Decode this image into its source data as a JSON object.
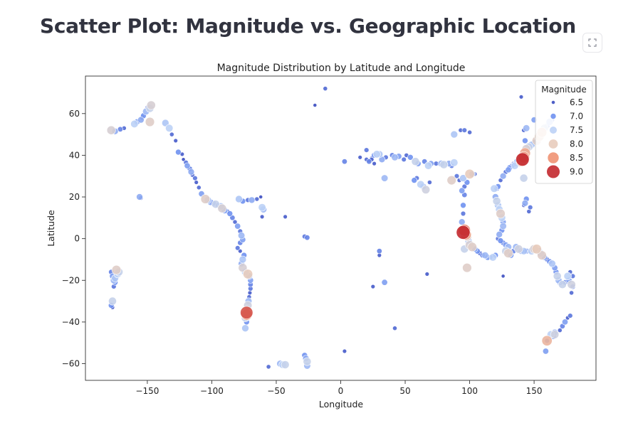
{
  "page": {
    "title": "Scatter Plot: Magnitude vs. Geographic Location"
  },
  "colors": {
    "low": "#3b4cc0",
    "mid": "#dddddd",
    "high": "#b40426"
  },
  "icons": {
    "fullscreen": "fullscreen-icon"
  },
  "chart_data": {
    "type": "scatter",
    "title": "Magnitude Distribution by Latitude and Longitude",
    "xlabel": "Longitude",
    "ylabel": "Latitude",
    "xlim": [
      -198,
      198
    ],
    "ylim": [
      -68,
      78
    ],
    "xticks": [
      -150,
      -100,
      -50,
      0,
      50,
      100,
      150
    ],
    "yticks": [
      -60,
      -40,
      -20,
      0,
      20,
      40,
      60
    ],
    "xtick_labels": [
      "−150",
      "−100",
      "−50",
      "0",
      "50",
      "100",
      "150"
    ],
    "ytick_labels": [
      "−60",
      "−40",
      "−20",
      "0",
      "20",
      "40",
      "60"
    ],
    "grid": false,
    "legend": {
      "title": "Magnitude",
      "placement": "top-right",
      "entries": [
        {
          "label": "6.5",
          "value": 6.5
        },
        {
          "label": "7.0",
          "value": 7.0
        },
        {
          "label": "7.5",
          "value": 7.5
        },
        {
          "label": "8.0",
          "value": 8.0
        },
        {
          "label": "8.5",
          "value": 8.5
        },
        {
          "label": "9.0",
          "value": 9.0
        }
      ]
    },
    "points": [
      [
        -178,
        52,
        7.8
      ],
      [
        -175,
        51.5,
        7.2
      ],
      [
        -171,
        52.5,
        6.9
      ],
      [
        -168,
        53,
        6.7
      ],
      [
        -160,
        55,
        7.5
      ],
      [
        -158,
        56,
        7.1
      ],
      [
        -155,
        57,
        7.2
      ],
      [
        -154,
        58,
        6.8
      ],
      [
        -153,
        59,
        7.0
      ],
      [
        -151,
        61,
        7.3
      ],
      [
        -150,
        63,
        6.6
      ],
      [
        -148,
        62.5,
        7.6
      ],
      [
        -147,
        64,
        7.8
      ],
      [
        -148,
        56,
        7.9
      ],
      [
        -136,
        55.5,
        7.4
      ],
      [
        -133,
        53,
        7.5
      ],
      [
        -131,
        50,
        6.7
      ],
      [
        -128,
        47,
        6.6
      ],
      [
        -126,
        41.5,
        7.0
      ],
      [
        -123,
        40.5,
        6.6
      ],
      [
        -122,
        38,
        6.5
      ],
      [
        -120,
        36.5,
        6.8
      ],
      [
        -119,
        35,
        7.1
      ],
      [
        -117,
        33.5,
        6.9
      ],
      [
        -116,
        32,
        7.2
      ],
      [
        -115,
        30.5,
        6.7
      ],
      [
        -113,
        29,
        6.8
      ],
      [
        -112,
        27,
        6.6
      ],
      [
        -110,
        24.5,
        6.7
      ],
      [
        -108,
        21.5,
        7.1
      ],
      [
        -105,
        19,
        7.9
      ],
      [
        -103,
        18.5,
        7.4
      ],
      [
        -101,
        17.5,
        7.2
      ],
      [
        -99,
        17,
        7.0
      ],
      [
        -97,
        16.5,
        7.6
      ],
      [
        -95,
        16,
        6.9
      ],
      [
        -93,
        15.5,
        7.4
      ],
      [
        -92,
        14.5,
        7.8
      ],
      [
        -90,
        13.5,
        7.2
      ],
      [
        -88,
        13,
        6.8
      ],
      [
        -86,
        12,
        7.0
      ],
      [
        -84,
        10,
        6.9
      ],
      [
        -82,
        8,
        6.7
      ],
      [
        -80,
        6,
        7.1
      ],
      [
        -78,
        3.5,
        6.8
      ],
      [
        -77,
        1.5,
        7.3
      ],
      [
        -76,
        -0.5,
        7.1
      ],
      [
        -78,
        -2,
        6.9
      ],
      [
        -80,
        -4.5,
        6.8
      ],
      [
        -78,
        -6,
        6.6
      ],
      [
        -75,
        -8,
        7.0
      ],
      [
        -76,
        -10,
        7.4
      ],
      [
        -77,
        -12,
        7.2
      ],
      [
        -76,
        -14,
        7.8
      ],
      [
        -74,
        -16,
        7.5
      ],
      [
        -72,
        -17,
        8.0
      ],
      [
        -71,
        -18,
        7.3
      ],
      [
        -70,
        -20,
        7.1
      ],
      [
        -70,
        -22,
        6.9
      ],
      [
        -70,
        -24,
        6.8
      ],
      [
        -70.5,
        -26,
        6.6
      ],
      [
        -71,
        -28,
        6.7
      ],
      [
        -71.5,
        -30,
        7.3
      ],
      [
        -72,
        -32,
        7.7
      ],
      [
        -73,
        -35.5,
        8.8
      ],
      [
        -73,
        -36.5,
        8.4
      ],
      [
        -74,
        -38,
        7.6
      ],
      [
        -73,
        -40,
        7.0
      ],
      [
        -74,
        -43,
        7.4
      ],
      [
        -79,
        19,
        7.4
      ],
      [
        -76,
        18,
        7.0
      ],
      [
        -72,
        18.5,
        6.8
      ],
      [
        -69,
        18.5,
        7.2
      ],
      [
        -65,
        19,
        6.7
      ],
      [
        -61,
        15,
        7.5
      ],
      [
        -60,
        14,
        7.3
      ],
      [
        -61,
        10.5,
        6.6
      ],
      [
        -62,
        20,
        6.5
      ],
      [
        -43,
        10.5,
        6.6
      ],
      [
        -56,
        -61.5,
        6.7
      ],
      [
        -47,
        -60,
        7.3
      ],
      [
        -45,
        -60.5,
        7.5
      ],
      [
        -43,
        -60.5,
        7.6
      ],
      [
        -28,
        -56,
        7.0
      ],
      [
        -27,
        -57.5,
        7.2
      ],
      [
        -26,
        -59,
        7.6
      ],
      [
        -26,
        -61,
        7.3
      ],
      [
        -28,
        1,
        6.8
      ],
      [
        -26,
        0.5,
        6.9
      ],
      [
        -12,
        72,
        6.7
      ],
      [
        -20,
        64,
        6.5
      ],
      [
        3,
        37,
        6.9
      ],
      [
        3,
        -54,
        6.6
      ],
      [
        -178,
        -16,
        6.9
      ],
      [
        -177,
        -18,
        7.1
      ],
      [
        -176,
        -20,
        7.3
      ],
      [
        -175,
        -21,
        7.0
      ],
      [
        -176,
        -23,
        6.8
      ],
      [
        -174,
        -15,
        7.9
      ],
      [
        -172,
        -16,
        7.6
      ],
      [
        -177,
        -30,
        7.6
      ],
      [
        -178,
        -32,
        7.0
      ],
      [
        -177,
        -33,
        6.6
      ],
      [
        -173,
        -17,
        7.5
      ],
      [
        -175,
        -19,
        7.4
      ],
      [
        -155,
        19.5,
        6.7
      ],
      [
        -156,
        20,
        7.2
      ],
      [
        15,
        39,
        6.6
      ],
      [
        20,
        38,
        6.7
      ],
      [
        22,
        37,
        6.9
      ],
      [
        24,
        38.5,
        6.7
      ],
      [
        26,
        40,
        7.0
      ],
      [
        28,
        40.5,
        7.5
      ],
      [
        30,
        40.5,
        7.4
      ],
      [
        32,
        38,
        7.2
      ],
      [
        35,
        39,
        6.8
      ],
      [
        40,
        40,
        6.9
      ],
      [
        42,
        39,
        7.3
      ],
      [
        45,
        39.5,
        7.1
      ],
      [
        49,
        38,
        6.8
      ],
      [
        51,
        40,
        6.7
      ],
      [
        54,
        39,
        7.0
      ],
      [
        58,
        37,
        7.6
      ],
      [
        60,
        36,
        7.1
      ],
      [
        65,
        37,
        6.9
      ],
      [
        68,
        35,
        7.5
      ],
      [
        70,
        36,
        7.1
      ],
      [
        74,
        36,
        6.8
      ],
      [
        26,
        36,
        6.6
      ],
      [
        22,
        37.5,
        6.6
      ],
      [
        34,
        29,
        7.3
      ],
      [
        57,
        28,
        7.0
      ],
      [
        59,
        29,
        6.8
      ],
      [
        62,
        26,
        7.5
      ],
      [
        64,
        25,
        7.2
      ],
      [
        66,
        23.5,
        7.7
      ],
      [
        69,
        27,
        6.7
      ],
      [
        20,
        42.5,
        6.8
      ],
      [
        24,
        38,
        6.7
      ],
      [
        30,
        -6,
        6.9
      ],
      [
        30,
        -8,
        6.6
      ],
      [
        34,
        -21,
        7.1
      ],
      [
        25,
        -23,
        6.6
      ],
      [
        42,
        -43,
        6.7
      ],
      [
        67,
        -17,
        6.6
      ],
      [
        88,
        50,
        7.4
      ],
      [
        93,
        52,
        6.7
      ],
      [
        96,
        52,
        6.8
      ],
      [
        100,
        51,
        6.7
      ],
      [
        78,
        36,
        7.3
      ],
      [
        80,
        35.5,
        7.6
      ],
      [
        84,
        36,
        7.2
      ],
      [
        86,
        35,
        6.9
      ],
      [
        88,
        36.5,
        7.5
      ],
      [
        90,
        30,
        6.8
      ],
      [
        92,
        28,
        6.7
      ],
      [
        86,
        28,
        7.9
      ],
      [
        95,
        29,
        7.4
      ],
      [
        98,
        27,
        7.0
      ],
      [
        100,
        31,
        8.0
      ],
      [
        102,
        31,
        7.2
      ],
      [
        104,
        31,
        6.7
      ],
      [
        96,
        25,
        6.8
      ],
      [
        94,
        23,
        7.1
      ],
      [
        96,
        21,
        6.9
      ],
      [
        95,
        16,
        7.0
      ],
      [
        95,
        12,
        6.8
      ],
      [
        94,
        8,
        7.2
      ],
      [
        95,
        6,
        6.7
      ],
      [
        96,
        4,
        8.6
      ],
      [
        95,
        3,
        9.1
      ],
      [
        97,
        2,
        8.4
      ],
      [
        98,
        1,
        7.9
      ],
      [
        99,
        -1,
        7.4
      ],
      [
        100,
        -3,
        7.8
      ],
      [
        102,
        -4,
        7.9
      ],
      [
        104,
        -5,
        7.1
      ],
      [
        106,
        -6,
        7.0
      ],
      [
        108,
        -7,
        6.8
      ],
      [
        110,
        -8,
        6.9
      ],
      [
        112,
        -8,
        7.3
      ],
      [
        114,
        -9,
        7.1
      ],
      [
        116,
        -9,
        6.8
      ],
      [
        118,
        -9,
        7.5
      ],
      [
        120,
        -8,
        7.0
      ],
      [
        98,
        -14,
        7.9
      ],
      [
        96,
        -5,
        7.6
      ],
      [
        120,
        20,
        7.2
      ],
      [
        121,
        18,
        7.6
      ],
      [
        122,
        16,
        7.4
      ],
      [
        123,
        14,
        7.5
      ],
      [
        124,
        12,
        7.9
      ],
      [
        125,
        10,
        7.5
      ],
      [
        126,
        8,
        7.1
      ],
      [
        126,
        6,
        7.3
      ],
      [
        125,
        4,
        7.0
      ],
      [
        123,
        2,
        7.2
      ],
      [
        122,
        0,
        6.8
      ],
      [
        124,
        -1,
        7.0
      ],
      [
        126,
        -2,
        6.9
      ],
      [
        128,
        -3,
        7.1
      ],
      [
        130,
        -4,
        7.3
      ],
      [
        128,
        -6,
        7.6
      ],
      [
        130,
        -7,
        7.9
      ],
      [
        132,
        -8,
        7.1
      ],
      [
        134,
        -6,
        6.9
      ],
      [
        136,
        -4,
        7.3
      ],
      [
        138,
        -5,
        7.7
      ],
      [
        140,
        -6,
        7.2
      ],
      [
        142,
        -6,
        7.4
      ],
      [
        144,
        -6,
        7.0
      ],
      [
        146,
        -6,
        6.8
      ],
      [
        148,
        -6,
        7.5
      ],
      [
        150,
        -5,
        7.8
      ],
      [
        152,
        -5,
        8.0
      ],
      [
        154,
        -6,
        7.3
      ],
      [
        155,
        -7,
        7.5
      ],
      [
        156,
        -8,
        7.9
      ],
      [
        158,
        -9,
        7.1
      ],
      [
        160,
        -10,
        6.8
      ],
      [
        162,
        -11,
        7.0
      ],
      [
        164,
        -12,
        7.4
      ],
      [
        166,
        -14,
        7.1
      ],
      [
        167,
        -16,
        7.0
      ],
      [
        168,
        -18,
        7.6
      ],
      [
        169,
        -20,
        7.3
      ],
      [
        170,
        -21,
        7.1
      ],
      [
        172,
        -22,
        7.6
      ],
      [
        174,
        -21,
        6.9
      ],
      [
        176,
        -18,
        7.5
      ],
      [
        177,
        -20,
        7.1
      ],
      [
        178,
        -16,
        6.7
      ],
      [
        179,
        -22,
        7.7
      ],
      [
        180,
        -23,
        6.9
      ],
      [
        179,
        -26,
        6.7
      ],
      [
        180,
        -18,
        6.8
      ],
      [
        119,
        24,
        7.5
      ],
      [
        121,
        24,
        6.9
      ],
      [
        122,
        25,
        7.0
      ],
      [
        124,
        28,
        6.7
      ],
      [
        126,
        30,
        7.2
      ],
      [
        128,
        32,
        6.8
      ],
      [
        130,
        33,
        7.1
      ],
      [
        131,
        34,
        7.0
      ],
      [
        133,
        35,
        6.9
      ],
      [
        134,
        36,
        6.7
      ],
      [
        135,
        35,
        7.5
      ],
      [
        136,
        36,
        7.1
      ],
      [
        137,
        37,
        7.3
      ],
      [
        139,
        38,
        7.6
      ],
      [
        140,
        37,
        8.2
      ],
      [
        141,
        38,
        9.0
      ],
      [
        142,
        39,
        8.5
      ],
      [
        143,
        41,
        8.3
      ],
      [
        144,
        43,
        7.8
      ],
      [
        146,
        44,
        7.6
      ],
      [
        148,
        45,
        7.4
      ],
      [
        150,
        46,
        7.1
      ],
      [
        152,
        47,
        7.9
      ],
      [
        154,
        49,
        8.0
      ],
      [
        156,
        51,
        8.1
      ],
      [
        158,
        53,
        7.6
      ],
      [
        160,
        54,
        7.0
      ],
      [
        162,
        56,
        7.4
      ],
      [
        164,
        57,
        6.8
      ],
      [
        142,
        52,
        6.7
      ],
      [
        143,
        47,
        7.0
      ],
      [
        144,
        53,
        7.3
      ],
      [
        150,
        57,
        7.1
      ],
      [
        140,
        68,
        6.6
      ],
      [
        142,
        29,
        7.6
      ],
      [
        143,
        17,
        7.2
      ],
      [
        144,
        19,
        7.0
      ],
      [
        146,
        13,
        6.7
      ],
      [
        147,
        15,
        6.8
      ],
      [
        142,
        16,
        6.6
      ],
      [
        126,
        -18,
        6.5
      ],
      [
        165,
        -47,
        7.0
      ],
      [
        166,
        -45,
        7.2
      ],
      [
        160,
        -49,
        8.2
      ],
      [
        163,
        -46,
        7.5
      ],
      [
        166,
        -46,
        7.7
      ],
      [
        170,
        -44,
        6.7
      ],
      [
        172,
        -42,
        6.9
      ],
      [
        174,
        -40,
        7.1
      ],
      [
        176,
        -38,
        6.6
      ],
      [
        178,
        -37,
        6.8
      ],
      [
        159,
        -54,
        7.1
      ],
      [
        160,
        -49,
        6.8
      ]
    ]
  }
}
